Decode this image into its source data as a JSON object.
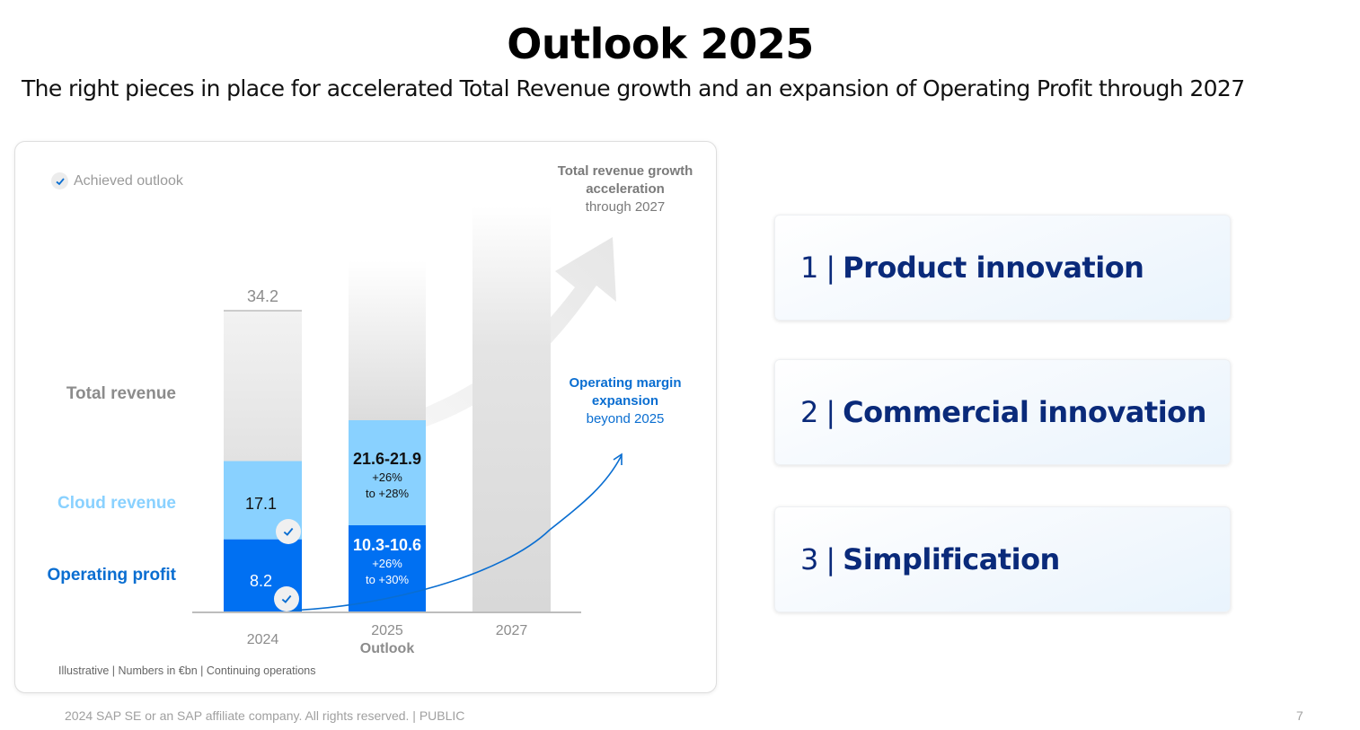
{
  "header": {
    "title": "Outlook 2025",
    "subtitle": "The right pieces in place for accelerated Total Revenue growth and an expansion of Operating Profit through 2027"
  },
  "legend": {
    "icon": "check-icon",
    "label": "Achieved outlook"
  },
  "colors": {
    "total_revenue": "#e3e3e3",
    "cloud_revenue": "#89d1ff",
    "operating_profit": "#0070f2",
    "future_bar": "#d9d9d9",
    "pillar_text": "#0a2a7a",
    "label_gray": "#8c8c8c"
  },
  "chart_data": {
    "type": "bar",
    "stacked": true,
    "title": "",
    "xlabel": "",
    "ylabel": "",
    "units": "€bn",
    "illustrative": true,
    "categories": [
      "2024",
      "2025",
      "2027"
    ],
    "category_sublabels": [
      "",
      "Outlook",
      ""
    ],
    "ylim": [
      0,
      44
    ],
    "series": [
      {
        "name": "Operating profit",
        "values": [
          8.2,
          10.45,
          null
        ],
        "labels": [
          "8.2",
          "10.3-10.6",
          null
        ],
        "growth": [
          null,
          "+26%\nto +30%",
          null
        ],
        "achieved": [
          true,
          false,
          false
        ]
      },
      {
        "name": "Cloud revenue",
        "values": [
          17.1,
          21.75,
          null
        ],
        "labels": [
          "17.1",
          "21.6-21.9",
          null
        ],
        "growth": [
          null,
          "+26%\nto +28%",
          null
        ],
        "achieved": [
          true,
          false,
          false
        ]
      },
      {
        "name": "Total revenue",
        "values": [
          34.2,
          null,
          null
        ],
        "labels": [
          "34.2",
          null,
          null
        ],
        "achieved": [
          false,
          false,
          false
        ]
      }
    ],
    "row_labels": [
      "Total revenue",
      "Cloud revenue",
      "Operating profit"
    ],
    "annotations": [
      {
        "bold": "Total revenue growth acceleration",
        "normal": "through 2027"
      },
      {
        "bold": "Operating margin expansion",
        "normal": "beyond 2025"
      }
    ],
    "footnote": "Illustrative | Numbers in €bn | Continuing operations"
  },
  "bars": {
    "y2024": {
      "total": "34.2",
      "cloud": "17.1",
      "op": "8.2"
    },
    "y2025": {
      "cloud_range": "21.6-21.9",
      "cloud_g1": "+26%",
      "cloud_g2": "to +28%",
      "op_range": "10.3-10.6",
      "op_g1": "+26%",
      "op_g2": "to +30%"
    },
    "x_labels": {
      "a": "2024",
      "b": "2025",
      "b_sub": "Outlook",
      "c": "2027"
    },
    "annot1": {
      "l1": "Total revenue growth",
      "l2": "acceleration",
      "l3": "through 2027"
    },
    "annot2": {
      "l1": "Operating margin",
      "l2": "expansion",
      "l3": "beyond 2025"
    }
  },
  "pillars": [
    {
      "num": "1",
      "sep": "|",
      "name": "Product innovation"
    },
    {
      "num": "2",
      "sep": "|",
      "name": "Commercial innovation"
    },
    {
      "num": "3",
      "sep": "|",
      "name": "Simplification"
    }
  ],
  "footer": {
    "copyright": "2024 SAP SE or an SAP affiliate company. All rights reserved.  | PUBLIC",
    "page": "7"
  }
}
